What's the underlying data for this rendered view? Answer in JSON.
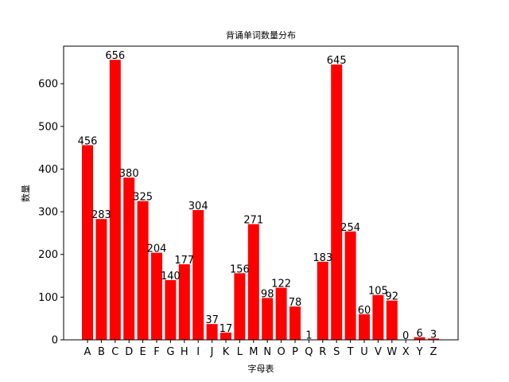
{
  "chart_data": {
    "type": "bar",
    "title": "背诵单词数量分布",
    "xlabel": "字母表",
    "ylabel": "数量",
    "categories": [
      "A",
      "B",
      "C",
      "D",
      "E",
      "F",
      "G",
      "H",
      "I",
      "J",
      "K",
      "L",
      "M",
      "N",
      "O",
      "P",
      "Q",
      "R",
      "S",
      "T",
      "U",
      "V",
      "W",
      "X",
      "Y",
      "Z"
    ],
    "values": [
      456,
      283,
      656,
      380,
      325,
      204,
      140,
      177,
      304,
      37,
      17,
      156,
      271,
      98,
      122,
      78,
      1,
      183,
      645,
      254,
      60,
      105,
      92,
      0,
      6,
      3
    ],
    "ylim": [
      0,
      688
    ],
    "yticks": [
      0,
      100,
      200,
      300,
      400,
      500,
      600
    ],
    "bar_color": "#ff0000",
    "grid": false,
    "legend": "none"
  }
}
